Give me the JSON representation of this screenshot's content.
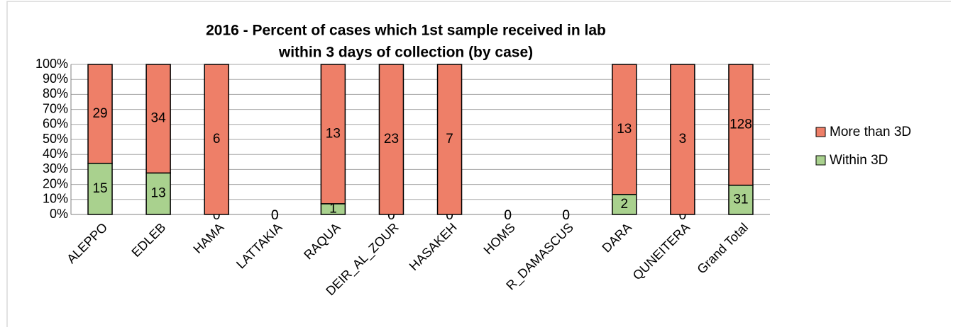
{
  "chart_data": {
    "type": "bar",
    "stacked": "percent",
    "title": [
      "2016 - Percent of cases which 1st sample received in lab",
      "within 3 days of collection (by case)"
    ],
    "categories": [
      "ALEPPO",
      "EDLEB",
      "HAMA",
      "LATTAKIA",
      "RAQUA",
      "DEIR_AL_ZOUR",
      "HASAKEH",
      "HOMS",
      "R_DAMASCUS",
      "DARA",
      "QUNEITERA",
      "Grand Total"
    ],
    "series": [
      {
        "name": "Within 3D",
        "color": "#a9d18e",
        "values": [
          15,
          13,
          0,
          0,
          1,
          0,
          0,
          0,
          0,
          2,
          0,
          31
        ]
      },
      {
        "name": "More than 3D",
        "color": "#ee7f68",
        "values": [
          29,
          34,
          6,
          0,
          13,
          23,
          7,
          0,
          0,
          13,
          3,
          128
        ]
      }
    ],
    "ylim": [
      0,
      100
    ],
    "yticks": [
      {
        "value": 0,
        "label": "0%"
      },
      {
        "value": 10,
        "label": "10%"
      },
      {
        "value": 20,
        "label": "20%"
      },
      {
        "value": 30,
        "label": "30%"
      },
      {
        "value": 40,
        "label": "40%"
      },
      {
        "value": 50,
        "label": "50%"
      },
      {
        "value": 60,
        "label": "60%"
      },
      {
        "value": 70,
        "label": "70%"
      },
      {
        "value": 80,
        "label": "80%"
      },
      {
        "value": 90,
        "label": "90%"
      },
      {
        "value": 100,
        "label": "100%"
      }
    ],
    "grid": true,
    "legend": "right"
  }
}
